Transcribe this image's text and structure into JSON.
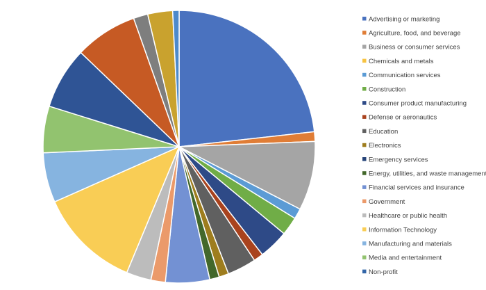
{
  "chart_data": {
    "type": "pie",
    "title": "",
    "legend_position": "right",
    "start": "12 o'clock",
    "direction": "clockwise",
    "slices": [
      {
        "label": "Advertising or marketing",
        "value": 24.4,
        "color": "#4A72BF"
      },
      {
        "label": "Agriculture, food, and beverage",
        "value": 1.2,
        "color": "#E07D36"
      },
      {
        "label": "Business or consumer services",
        "value": 8.6,
        "color": "#A5A5A5"
      },
      {
        "label": "Chemicals and metals",
        "value": 0.0,
        "color": "#F7C342"
      },
      {
        "label": "Communication services",
        "value": 1.3,
        "color": "#5B9BD5"
      },
      {
        "label": "Construction",
        "value": 2.3,
        "color": "#70AD47"
      },
      {
        "label": "Consumer product manufacturing",
        "value": 3.7,
        "color": "#2E4A87"
      },
      {
        "label": "Defense or aeronautics",
        "value": 1.2,
        "color": "#A9431E"
      },
      {
        "label": "Education",
        "value": 3.6,
        "color": "#606060"
      },
      {
        "label": "Electronics",
        "value": 1.2,
        "color": "#9E7D1E"
      },
      {
        "label": "Emergency services",
        "value": 0.0,
        "color": "#264478"
      },
      {
        "label": "Energy, utilities, and waste management",
        "value": 1.2,
        "color": "#43682B"
      },
      {
        "label": "Financial services and insurance",
        "value": 5.5,
        "color": "#7391D3"
      },
      {
        "label": "Government",
        "value": 1.8,
        "color": "#EB9A6A"
      },
      {
        "label": "Healthcare or public health",
        "value": 3.1,
        "color": "#BCBCBC"
      },
      {
        "label": "Information Technology",
        "value": 12.7,
        "color": "#F9CD55"
      },
      {
        "label": "Manufacturing and materials",
        "value": 6.2,
        "color": "#86B4E0"
      },
      {
        "label": "Media and entertainment",
        "value": 5.8,
        "color": "#92C36F"
      },
      {
        "label": "Non-profit",
        "value": 0.0,
        "color": "#3366A8"
      },
      {
        "label": "",
        "value": 7.7,
        "color": "#2F5495"
      },
      {
        "label": "",
        "value": 7.8,
        "color": "#C65A24"
      },
      {
        "label": "",
        "value": 1.8,
        "color": "#7E7E7E"
      },
      {
        "label": "",
        "value": 3.1,
        "color": "#C9A22E"
      },
      {
        "label": "",
        "value": 0.8,
        "color": "#4D8ACB"
      }
    ]
  }
}
